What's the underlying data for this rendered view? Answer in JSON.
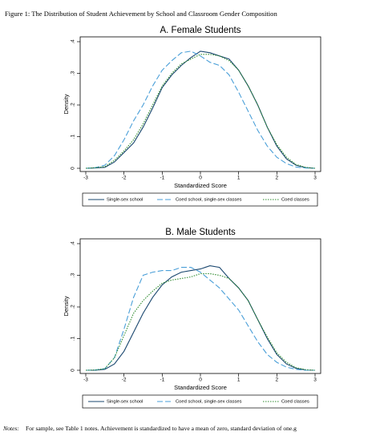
{
  "figure_title": "Figure 1: The Distribution of Student Achievement by School and Classroom Gender Composition",
  "notes_label": "Notes:",
  "notes": "For sample, see Table 1 notes. Achievement is standardized to have a mean of zero, standard deviation of one.g",
  "chart_data": [
    {
      "type": "line",
      "title": "A. Female Students",
      "x_label": "Standardized Score",
      "y_label": "Density",
      "xlim": [
        -3,
        3
      ],
      "xticks": [
        -3,
        -2,
        -1,
        0,
        1,
        2,
        3
      ],
      "ylim": [
        0,
        0.4
      ],
      "yticks": [
        {
          "value": 0,
          "label": "0"
        },
        {
          "value": 0.1,
          "label": ".1"
        },
        {
          "value": 0.2,
          "label": ".2"
        },
        {
          "value": 0.3,
          "label": ".3"
        },
        {
          "value": 0.4,
          "label": ".4"
        }
      ],
      "x": [
        -3,
        -2.75,
        -2.5,
        -2.25,
        -2,
        -1.75,
        -1.5,
        -1.25,
        -1,
        -0.75,
        -0.5,
        -0.25,
        0,
        0.25,
        0.5,
        0.75,
        1,
        1.25,
        1.5,
        1.75,
        2,
        2.25,
        2.5,
        2.75,
        3
      ],
      "series": [
        {
          "name": "Single-sex school",
          "color": "#1a476f",
          "style": "solid",
          "values": [
            0,
            0.001,
            0.003,
            0.02,
            0.05,
            0.08,
            0.13,
            0.19,
            0.255,
            0.295,
            0.325,
            0.35,
            0.37,
            0.365,
            0.355,
            0.345,
            0.31,
            0.26,
            0.2,
            0.13,
            0.07,
            0.03,
            0.01,
            0.002,
            0
          ]
        },
        {
          "name": "Coed school, single-sex classes",
          "color": "#4a9fd8",
          "style": "dashed",
          "values": [
            0,
            0.002,
            0.01,
            0.04,
            0.09,
            0.15,
            0.2,
            0.26,
            0.31,
            0.34,
            0.365,
            0.37,
            0.355,
            0.335,
            0.325,
            0.295,
            0.24,
            0.18,
            0.12,
            0.07,
            0.035,
            0.015,
            0.004,
            0.001,
            0
          ]
        },
        {
          "name": "Coed classes",
          "color": "#2e8b2e",
          "style": "dotted",
          "values": [
            0,
            0.002,
            0.005,
            0.025,
            0.055,
            0.09,
            0.14,
            0.2,
            0.26,
            0.3,
            0.33,
            0.345,
            0.36,
            0.36,
            0.355,
            0.34,
            0.31,
            0.26,
            0.2,
            0.13,
            0.075,
            0.035,
            0.012,
            0.003,
            0
          ]
        }
      ]
    },
    {
      "type": "line",
      "title": "B. Male Students",
      "x_label": "Standardized Score",
      "y_label": "Density",
      "xlim": [
        -3,
        3
      ],
      "xticks": [
        -3,
        -2,
        -1,
        0,
        1,
        2,
        3
      ],
      "ylim": [
        0,
        0.4
      ],
      "yticks": [
        {
          "value": 0,
          "label": "0"
        },
        {
          "value": 0.1,
          "label": ".1"
        },
        {
          "value": 0.2,
          "label": ".2"
        },
        {
          "value": 0.3,
          "label": ".3"
        },
        {
          "value": 0.4,
          "label": ".4"
        }
      ],
      "x": [
        -3,
        -2.75,
        -2.5,
        -2.25,
        -2,
        -1.75,
        -1.5,
        -1.25,
        -1,
        -0.75,
        -0.5,
        -0.25,
        0,
        0.25,
        0.5,
        0.75,
        1,
        1.25,
        1.5,
        1.75,
        2,
        2.25,
        2.5,
        2.75,
        3
      ],
      "series": [
        {
          "name": "Single-sex school",
          "color": "#1a476f",
          "style": "solid",
          "values": [
            0,
            0,
            0.003,
            0.02,
            0.06,
            0.12,
            0.18,
            0.23,
            0.27,
            0.295,
            0.31,
            0.315,
            0.32,
            0.33,
            0.325,
            0.29,
            0.26,
            0.22,
            0.16,
            0.1,
            0.05,
            0.02,
            0.006,
            0.001,
            0
          ]
        },
        {
          "name": "Coed school, single-sex classes",
          "color": "#4a9fd8",
          "style": "dashed",
          "values": [
            0,
            0.001,
            0.005,
            0.04,
            0.13,
            0.23,
            0.3,
            0.31,
            0.315,
            0.315,
            0.325,
            0.325,
            0.31,
            0.285,
            0.26,
            0.225,
            0.19,
            0.14,
            0.09,
            0.05,
            0.025,
            0.01,
            0.003,
            0,
            0
          ]
        },
        {
          "name": "Coed classes",
          "color": "#2e8b2e",
          "style": "dotted",
          "values": [
            0,
            0.001,
            0.005,
            0.04,
            0.11,
            0.18,
            0.22,
            0.25,
            0.275,
            0.285,
            0.29,
            0.295,
            0.305,
            0.305,
            0.3,
            0.29,
            0.26,
            0.22,
            0.16,
            0.105,
            0.055,
            0.025,
            0.008,
            0.002,
            0
          ]
        }
      ]
    }
  ]
}
